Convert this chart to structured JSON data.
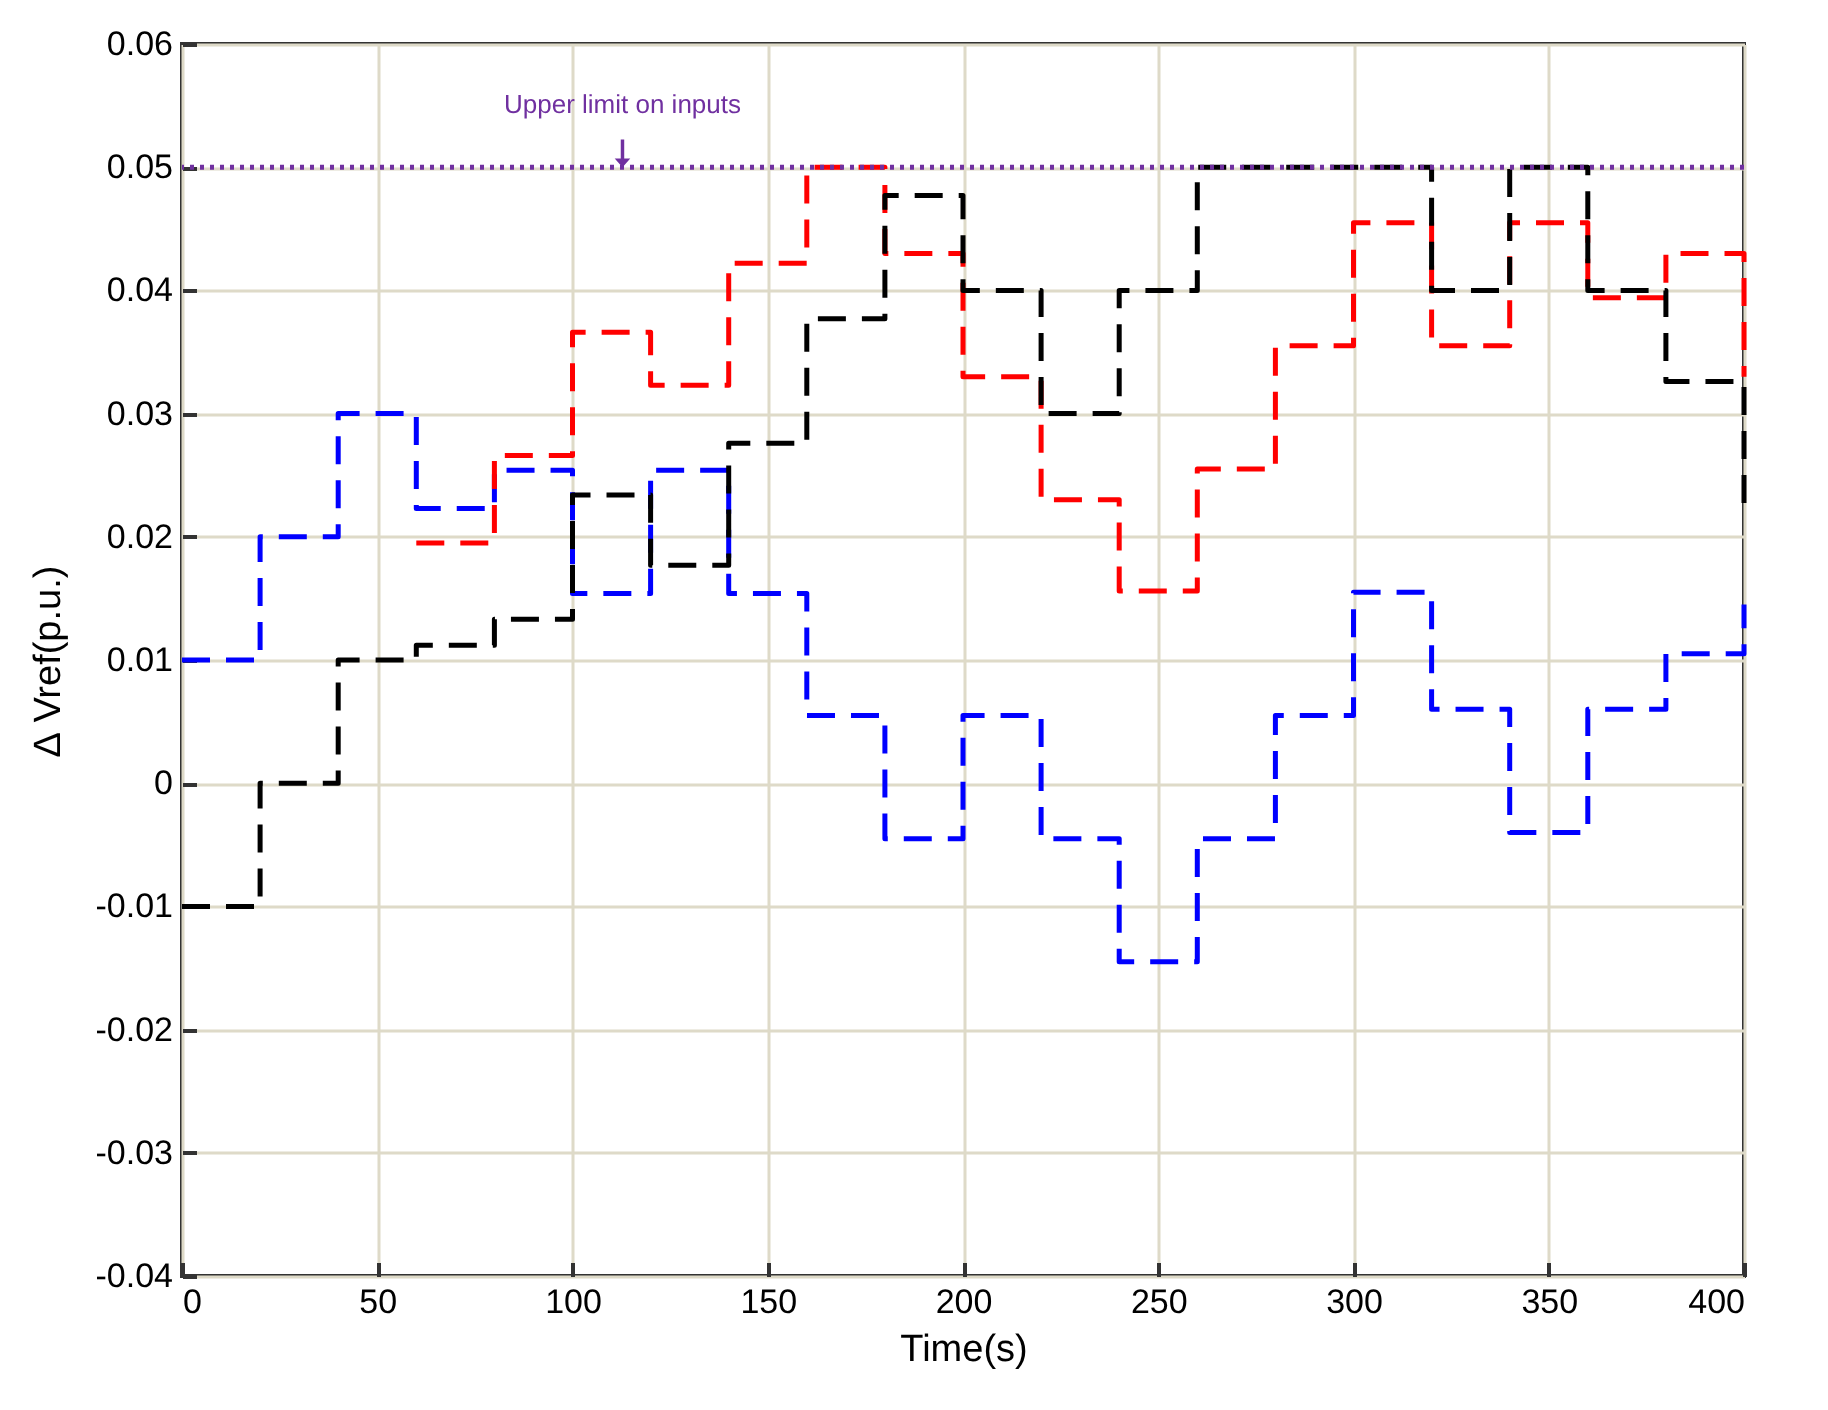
{
  "chart_data": {
    "type": "step",
    "xlabel": "Time(s)",
    "ylabel": "∆ Vref(p.u.)",
    "x": [
      0,
      20,
      40,
      60,
      80,
      100,
      120,
      140,
      160,
      180,
      200,
      220,
      240,
      260,
      280,
      300,
      320,
      340,
      360,
      380,
      400
    ],
    "xlim": [
      0,
      400
    ],
    "xticks": [
      0,
      50,
      100,
      150,
      200,
      250,
      300,
      350,
      400
    ],
    "ylim": [
      -0.04,
      0.06
    ],
    "yticks": [
      -0.04,
      -0.03,
      -0.02,
      -0.01,
      0,
      0.01,
      0.02,
      0.03,
      0.04,
      0.05,
      0.06
    ],
    "grid": true,
    "legend": false,
    "line_style": "dashed",
    "series": [
      {
        "color": "#0000ff",
        "values": [
          0.01,
          0.02,
          0.03,
          0.0223,
          0.0254,
          0.0154,
          0.0254,
          0.0154,
          0.0055,
          -0.0045,
          0.0055,
          -0.0045,
          -0.0145,
          -0.0045,
          0.0055,
          0.0155,
          0.006,
          -0.004,
          0.006,
          0.0105,
          0.0145
        ]
      },
      {
        "color": "#ff0000",
        "values": [
          null,
          null,
          null,
          0.0195,
          0.0266,
          0.0366,
          0.0323,
          0.0422,
          0.05,
          0.043,
          0.033,
          0.023,
          0.0156,
          0.0255,
          0.0355,
          0.0455,
          0.0355,
          0.0455,
          0.0394,
          0.043,
          0.033
        ]
      },
      {
        "color": "#000000",
        "values": [
          -0.01,
          0,
          0.01,
          0.0112,
          0.0133,
          0.0234,
          0.0177,
          0.0276,
          0.0377,
          0.0477,
          0.04,
          0.03,
          0.04,
          0.05,
          0.05,
          0.05,
          0.04,
          0.05,
          0.04,
          0.0326,
          0.0226
        ]
      }
    ],
    "ref_lines": [
      {
        "axis": "y",
        "value": 0.05,
        "color": "#7030a0",
        "line_style": "dotted",
        "label": "Upper limit on inputs"
      }
    ]
  }
}
